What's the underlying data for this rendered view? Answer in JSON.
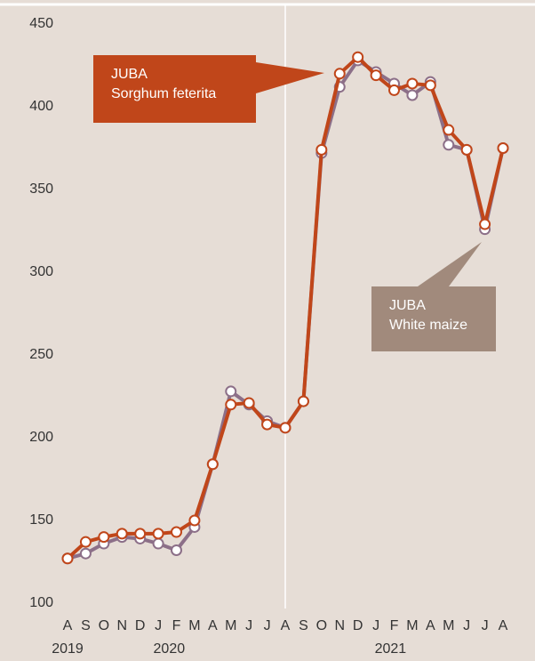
{
  "chart_data": {
    "type": "line",
    "categories": [
      "A",
      "S",
      "O",
      "N",
      "D",
      "J",
      "F",
      "M",
      "A",
      "M",
      "J",
      "J",
      "A",
      "S",
      "O",
      "N",
      "D",
      "J",
      "F",
      "M",
      "A",
      "M",
      "J",
      "J",
      "A"
    ],
    "year_labels": [
      "2019",
      "2020",
      "2021"
    ],
    "series": [
      {
        "color": "#8c6f88",
        "label": [
          "JUBA",
          "White maize"
        ],
        "label_color": "#a18a7c",
        "values": [
          127,
          130,
          136,
          140,
          139,
          136,
          132,
          146,
          184,
          228,
          220,
          210,
          206,
          222,
          372,
          412,
          428,
          421,
          414,
          407,
          415,
          377,
          374,
          326,
          375
        ]
      },
      {
        "color": "#c0461a",
        "label": [
          "JUBA",
          "Sorghum feterita"
        ],
        "label_color": "#c0461a",
        "values": [
          127,
          137,
          140,
          142,
          142,
          142,
          143,
          150,
          184,
          220,
          221,
          208,
          206,
          222,
          374,
          420,
          430,
          419,
          410,
          414,
          413,
          386,
          374,
          329,
          375
        ]
      }
    ],
    "ylim": [
      100,
      450
    ],
    "yticks": [
      100,
      150,
      200,
      250,
      300,
      350,
      400,
      450
    ]
  }
}
